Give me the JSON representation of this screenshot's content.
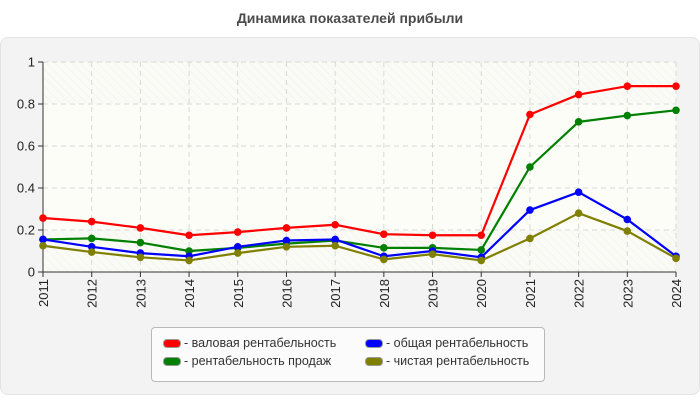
{
  "chart_data": {
    "type": "line",
    "title": "Динамика показателей прибыли",
    "xlabel": "",
    "ylabel": "",
    "ylim": [
      0,
      1
    ],
    "yticks": [
      "0",
      "0.2",
      "0.4",
      "0.6",
      "0.8",
      "1"
    ],
    "grid": true,
    "legend_position": "bottom",
    "x": [
      "2011",
      "2012",
      "2013",
      "2014",
      "2015",
      "2016",
      "2017",
      "2018",
      "2019",
      "2020",
      "2021",
      "2022",
      "2023",
      "2024"
    ],
    "series": [
      {
        "name": "валовая рентабельность",
        "color": "#ff0000",
        "values": [
          0.257,
          0.24,
          0.21,
          0.175,
          0.19,
          0.21,
          0.225,
          0.18,
          0.175,
          0.175,
          0.75,
          0.845,
          0.885,
          0.885
        ]
      },
      {
        "name": "рентабельность продаж",
        "color": "#008000",
        "values": [
          0.155,
          0.16,
          0.14,
          0.1,
          0.115,
          0.135,
          0.15,
          0.115,
          0.115,
          0.105,
          0.5,
          0.715,
          0.745,
          0.77
        ]
      },
      {
        "name": "общая рентабельность",
        "color": "#0000ff",
        "values": [
          0.155,
          0.12,
          0.09,
          0.075,
          0.12,
          0.15,
          0.155,
          0.075,
          0.1,
          0.07,
          0.295,
          0.38,
          0.25,
          0.075
        ]
      },
      {
        "name": "чистая рентабельность",
        "color": "#808000",
        "values": [
          0.125,
          0.095,
          0.07,
          0.055,
          0.09,
          0.12,
          0.125,
          0.06,
          0.085,
          0.055,
          0.16,
          0.28,
          0.195,
          0.065
        ]
      }
    ]
  },
  "legend": {
    "items": [
      {
        "label": "- валовая рентабельность",
        "color": "#ff0000"
      },
      {
        "label": "- общая рентабельность",
        "color": "#0000ff"
      },
      {
        "label": "- рентабельность продаж",
        "color": "#008000"
      },
      {
        "label": "- чистая рентабельность",
        "color": "#808000"
      }
    ]
  }
}
